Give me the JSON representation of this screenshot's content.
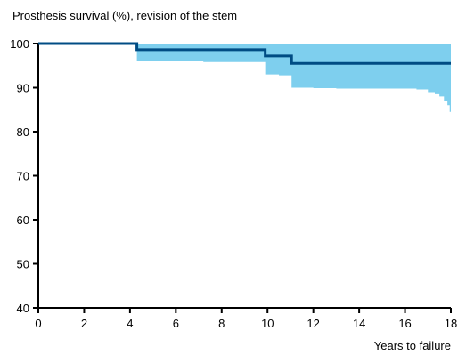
{
  "chart_data": {
    "type": "line",
    "title": "Prosthesis survival (%), revision of the stem",
    "xlabel": "Years to failure",
    "ylabel": "",
    "xlim": [
      0,
      18
    ],
    "ylim": [
      40,
      100
    ],
    "x_ticks": [
      0,
      2,
      4,
      6,
      8,
      10,
      12,
      14,
      16,
      18
    ],
    "y_ticks": [
      40,
      50,
      60,
      70,
      80,
      90,
      100
    ],
    "grid": false,
    "colors": {
      "line": "#004c84",
      "band": "#7ecfee",
      "axis": "#000000"
    },
    "series": [
      {
        "type": "step",
        "x": [
          0,
          4.3,
          9.9,
          11.05,
          18
        ],
        "y": [
          100,
          98.6,
          97.2,
          95.5,
          95.5
        ]
      }
    ],
    "confidence_band": {
      "upper": 100,
      "lower": [
        {
          "x": 4.3,
          "y": 96.0
        },
        {
          "x": 7.2,
          "y": 95.8
        },
        {
          "x": 9.9,
          "y": 93.0
        },
        {
          "x": 10.5,
          "y": 92.8
        },
        {
          "x": 11.05,
          "y": 90.0
        },
        {
          "x": 12.0,
          "y": 89.9
        },
        {
          "x": 13.0,
          "y": 89.8
        },
        {
          "x": 16.5,
          "y": 89.6
        },
        {
          "x": 17.0,
          "y": 89.0
        },
        {
          "x": 17.3,
          "y": 88.5
        },
        {
          "x": 17.5,
          "y": 88.0
        },
        {
          "x": 17.7,
          "y": 87.0
        },
        {
          "x": 17.85,
          "y": 86.0
        },
        {
          "x": 17.95,
          "y": 84.5
        },
        {
          "x": 18.0,
          "y": 83.5
        }
      ]
    }
  }
}
